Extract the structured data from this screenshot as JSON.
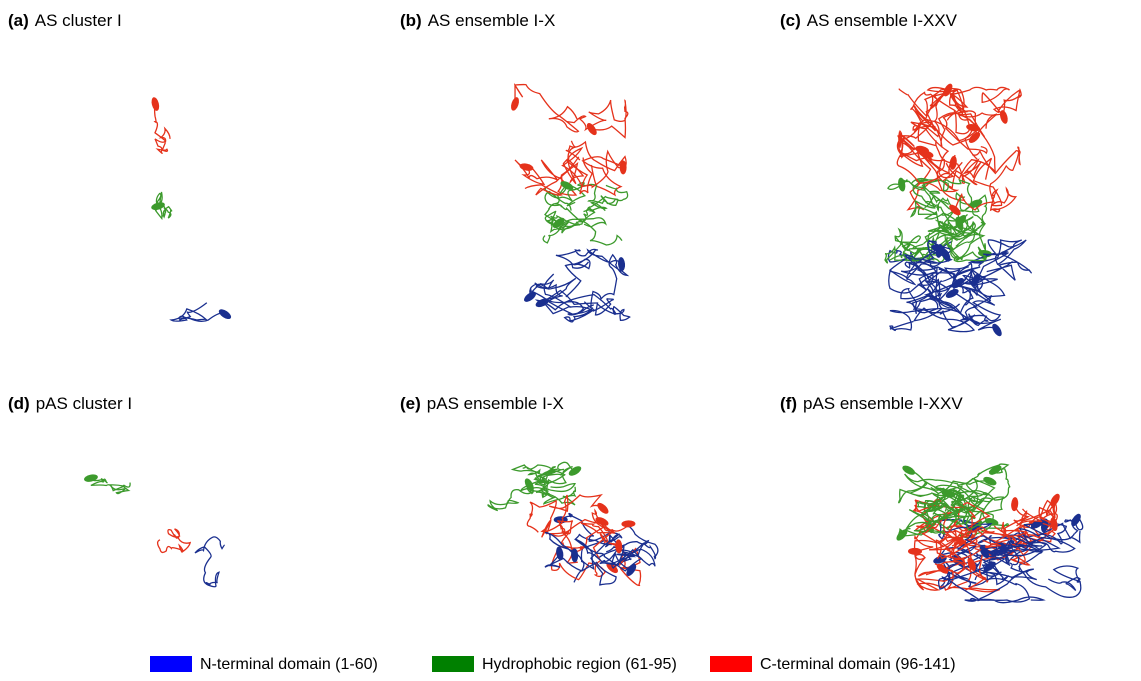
{
  "panels": [
    {
      "tag": "(a)",
      "title": "AS cluster I"
    },
    {
      "tag": "(b)",
      "title": "AS ensemble I-X"
    },
    {
      "tag": "(c)",
      "title": "AS ensemble I-XXV"
    },
    {
      "tag": "(d)",
      "title": "pAS cluster I"
    },
    {
      "tag": "(e)",
      "title": "pAS ensemble I-X"
    },
    {
      "tag": "(f)",
      "title": "pAS ensemble I-XXV"
    }
  ],
  "legend": [
    {
      "label": "N-terminal domain (1-60)",
      "color": "#0000ff"
    },
    {
      "label": "Hydrophobic region (61-95)",
      "color": "#008000"
    },
    {
      "label": "C-terminal domain (96-141)",
      "color": "#ff0000"
    }
  ]
}
